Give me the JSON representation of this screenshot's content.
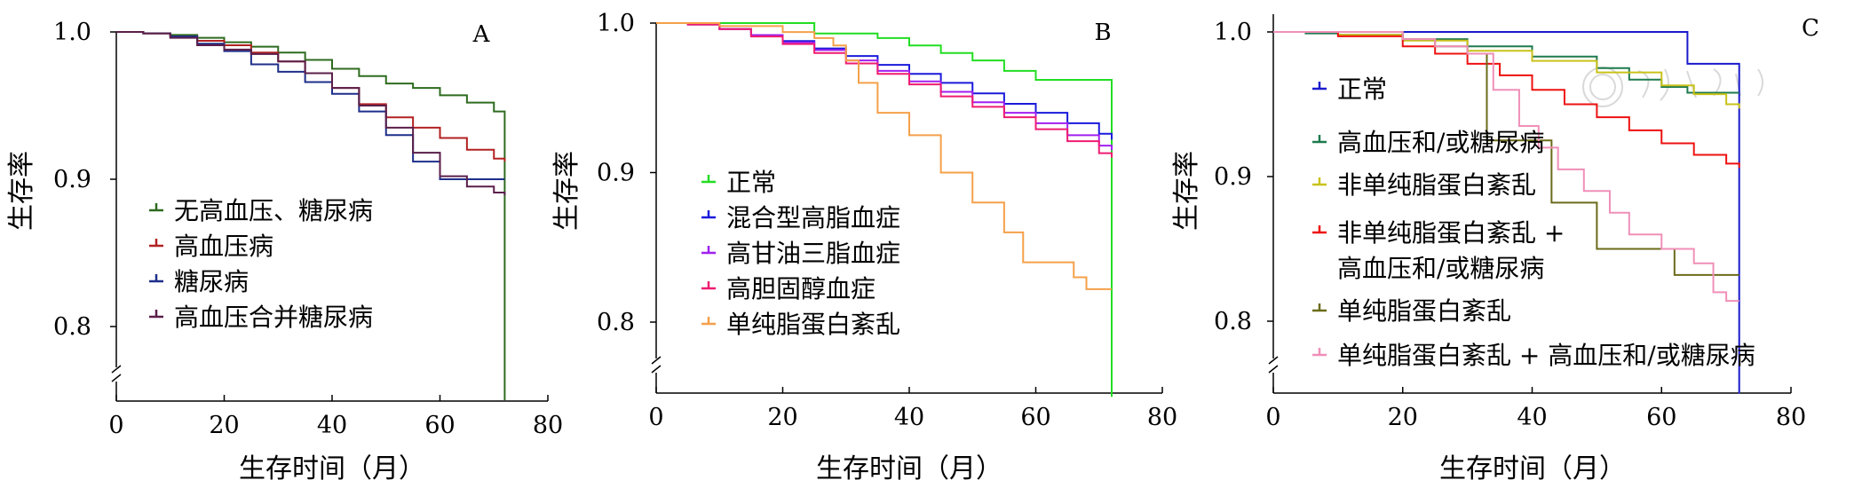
{
  "chart_data": [
    {
      "type": "line",
      "panel_label": "A",
      "xlabel": "生存时间（月）",
      "ylabel": "生存率",
      "xlim": [
        0,
        80
      ],
      "ylim": [
        0.75,
        1.0
      ],
      "xticks": [
        "0",
        "20",
        "40",
        "60",
        "80"
      ],
      "yticks": [
        "0.8",
        "0.9",
        "1.0"
      ],
      "axis_break": true,
      "legend_position": "lower-left",
      "series": [
        {
          "name": "无高血压、糖尿病",
          "color": "#2e6b1f",
          "x": [
            0,
            5,
            10,
            15,
            20,
            25,
            30,
            35,
            40,
            45,
            50,
            55,
            60,
            65,
            70,
            72,
            72
          ],
          "y": [
            1.0,
            0.999,
            0.998,
            0.996,
            0.993,
            0.99,
            0.986,
            0.981,
            0.975,
            0.97,
            0.965,
            0.962,
            0.957,
            0.952,
            0.946,
            0.942,
            0.75
          ]
        },
        {
          "name": "高血压病",
          "color": "#b22222",
          "x": [
            0,
            5,
            10,
            15,
            20,
            25,
            30,
            35,
            40,
            45,
            50,
            55,
            60,
            65,
            70,
            72
          ],
          "y": [
            1.0,
            0.999,
            0.997,
            0.994,
            0.991,
            0.986,
            0.98,
            0.972,
            0.962,
            0.951,
            0.942,
            0.935,
            0.928,
            0.92,
            0.914,
            0.912
          ]
        },
        {
          "name": "糖尿病",
          "color": "#1f2f8a",
          "x": [
            0,
            5,
            10,
            15,
            20,
            25,
            30,
            35,
            40,
            45,
            50,
            55,
            60,
            65,
            70,
            72
          ],
          "y": [
            1.0,
            0.999,
            0.997,
            0.992,
            0.987,
            0.978,
            0.973,
            0.966,
            0.958,
            0.946,
            0.93,
            0.912,
            0.9,
            0.9,
            0.9,
            0.9
          ]
        },
        {
          "name": "高血压合并糖尿病",
          "color": "#5a1f4a",
          "x": [
            0,
            5,
            10,
            15,
            20,
            25,
            30,
            35,
            40,
            45,
            50,
            55,
            60,
            65,
            70,
            72
          ],
          "y": [
            1.0,
            0.999,
            0.996,
            0.991,
            0.988,
            0.985,
            0.98,
            0.972,
            0.962,
            0.95,
            0.935,
            0.918,
            0.902,
            0.895,
            0.891,
            0.889
          ]
        }
      ]
    },
    {
      "type": "line",
      "panel_label": "B",
      "xlabel": "生存时间（月）",
      "ylabel": "生存率",
      "xlim": [
        0,
        80
      ],
      "ylim": [
        0.75,
        1.0
      ],
      "xticks": [
        "0",
        "20",
        "40",
        "60",
        "80"
      ],
      "yticks": [
        "0.8",
        "0.9",
        "1.0"
      ],
      "axis_break": true,
      "legend_position": "left",
      "series": [
        {
          "name": "正常",
          "color": "#22dd22",
          "x": [
            0,
            25,
            25,
            35,
            40,
            45,
            50,
            55,
            60,
            65,
            70,
            72,
            72
          ],
          "y": [
            1.0,
            1.0,
            0.993,
            0.99,
            0.985,
            0.98,
            0.975,
            0.968,
            0.962,
            0.962,
            0.962,
            0.962,
            0.75
          ]
        },
        {
          "name": "混合型高脂血症",
          "color": "#1a1adb",
          "x": [
            0,
            5,
            10,
            15,
            20,
            25,
            30,
            35,
            40,
            45,
            50,
            55,
            60,
            65,
            70,
            72
          ],
          "y": [
            1.0,
            0.999,
            0.996,
            0.992,
            0.988,
            0.983,
            0.978,
            0.972,
            0.966,
            0.96,
            0.953,
            0.946,
            0.94,
            0.933,
            0.926,
            0.922
          ]
        },
        {
          "name": "高甘油三脂血症",
          "color": "#a020f0",
          "x": [
            0,
            5,
            10,
            15,
            20,
            25,
            30,
            35,
            40,
            45,
            50,
            55,
            60,
            65,
            70,
            72
          ],
          "y": [
            1.0,
            0.999,
            0.996,
            0.992,
            0.987,
            0.982,
            0.975,
            0.968,
            0.961,
            0.954,
            0.947,
            0.94,
            0.933,
            0.925,
            0.918,
            0.915
          ]
        },
        {
          "name": "高胆固醇血症",
          "color": "#ee1c71",
          "x": [
            0,
            5,
            10,
            15,
            20,
            25,
            30,
            35,
            40,
            45,
            50,
            55,
            60,
            65,
            70,
            72
          ],
          "y": [
            1.0,
            0.999,
            0.996,
            0.991,
            0.986,
            0.98,
            0.973,
            0.966,
            0.959,
            0.951,
            0.944,
            0.937,
            0.929,
            0.921,
            0.913,
            0.91
          ]
        },
        {
          "name": "单纯脂蛋白紊乱",
          "color": "#f5a04a",
          "x": [
            0,
            10,
            20,
            25,
            28,
            30,
            32,
            35,
            40,
            45,
            50,
            55,
            58,
            62,
            66,
            68,
            70,
            72
          ],
          "y": [
            1.0,
            0.998,
            0.994,
            0.99,
            0.985,
            0.975,
            0.96,
            0.94,
            0.925,
            0.9,
            0.88,
            0.86,
            0.84,
            0.84,
            0.83,
            0.822,
            0.822,
            0.822
          ]
        }
      ]
    },
    {
      "type": "line",
      "panel_label": "C",
      "xlabel": "生存时间（月）",
      "ylabel": "生存率",
      "xlim": [
        0,
        80
      ],
      "ylim": [
        0.75,
        1.0
      ],
      "xticks": [
        "0",
        "20",
        "40",
        "60",
        "80"
      ],
      "yticks": [
        "0.8",
        "0.9",
        "1.0"
      ],
      "axis_break": true,
      "legend_position": "left",
      "series": [
        {
          "name": "正常",
          "color": "#1a1acc",
          "x": [
            0,
            64,
            64,
            72,
            72
          ],
          "y": [
            1.0,
            1.0,
            0.978,
            0.978,
            0.75
          ]
        },
        {
          "name": "高血压和/或糖尿病",
          "color": "#1e7a4e",
          "x": [
            0,
            5,
            10,
            20,
            30,
            40,
            50,
            55,
            60,
            64,
            72
          ],
          "y": [
            1.0,
            0.999,
            0.998,
            0.995,
            0.99,
            0.983,
            0.975,
            0.967,
            0.962,
            0.958,
            0.958
          ]
        },
        {
          "name": "非单纯脂蛋白紊乱",
          "color": "#c9c21a",
          "x": [
            0,
            10,
            20,
            30,
            40,
            50,
            60,
            65,
            70,
            72
          ],
          "y": [
            1.0,
            0.998,
            0.994,
            0.987,
            0.98,
            0.972,
            0.963,
            0.957,
            0.95,
            0.947
          ]
        },
        {
          "name": "非单纯脂蛋白紊乱+高血压和/或糖尿病",
          "color": "#ee1111",
          "x": [
            0,
            10,
            20,
            25,
            30,
            35,
            40,
            45,
            50,
            55,
            60,
            65,
            70,
            72
          ],
          "y": [
            1.0,
            0.997,
            0.99,
            0.985,
            0.978,
            0.97,
            0.96,
            0.95,
            0.941,
            0.932,
            0.923,
            0.915,
            0.909,
            0.906
          ]
        },
        {
          "name": "单纯脂蛋白紊乱",
          "color": "#6b6b1a",
          "x": [
            0,
            20,
            25,
            30,
            33,
            33,
            37,
            43,
            43,
            50,
            50,
            62,
            62,
            72
          ],
          "y": [
            1.0,
            0.995,
            0.99,
            0.985,
            0.94,
            0.925,
            0.925,
            0.918,
            0.882,
            0.882,
            0.85,
            0.85,
            0.832,
            0.832
          ]
        },
        {
          "name": "单纯脂蛋白紊乱+高血压和/或糖尿病",
          "color": "#f08fb8",
          "x": [
            0,
            20,
            25,
            30,
            34,
            38,
            41,
            44,
            48,
            52,
            55,
            60,
            65,
            68,
            70,
            72
          ],
          "y": [
            1.0,
            0.995,
            0.99,
            0.985,
            0.96,
            0.935,
            0.92,
            0.905,
            0.89,
            0.875,
            0.86,
            0.85,
            0.84,
            0.82,
            0.814,
            0.814
          ]
        }
      ]
    }
  ]
}
